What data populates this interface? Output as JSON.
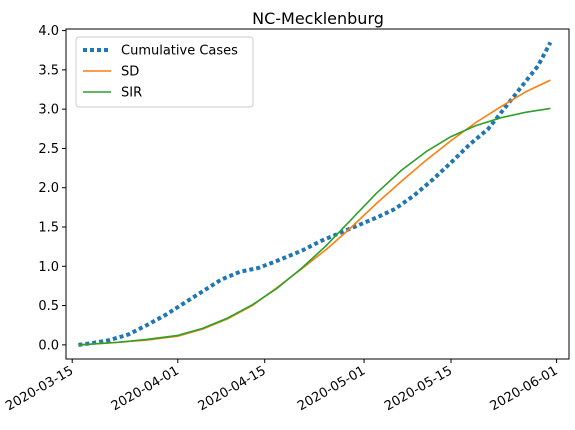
{
  "chart_data": {
    "type": "line",
    "title": "NC-Mecklenburg",
    "xlabel": "",
    "ylabel": "",
    "x_axis": {
      "type": "date",
      "range": [
        "2020-03-14",
        "2020-06-03"
      ],
      "ticks": [
        {
          "value": "2020-03-15",
          "label": "2020-03-15"
        },
        {
          "value": "2020-04-01",
          "label": "2020-04-01"
        },
        {
          "value": "2020-04-15",
          "label": "2020-04-15"
        },
        {
          "value": "2020-05-01",
          "label": "2020-05-01"
        },
        {
          "value": "2020-05-15",
          "label": "2020-05-15"
        },
        {
          "value": "2020-06-01",
          "label": "2020-06-01"
        }
      ],
      "tick_rotation": "30 degrees"
    },
    "y_axis": {
      "range": [
        -0.18,
        4.02
      ],
      "ticks": [
        {
          "value": 0.0,
          "label": "0.0"
        },
        {
          "value": 0.5,
          "label": "0.5"
        },
        {
          "value": 1.0,
          "label": "1.0"
        },
        {
          "value": 1.5,
          "label": "1.5"
        },
        {
          "value": 2.0,
          "label": "2.0"
        },
        {
          "value": 2.5,
          "label": "2.5"
        },
        {
          "value": 3.0,
          "label": "3.0"
        },
        {
          "value": 3.5,
          "label": "3.5"
        },
        {
          "value": 4.0,
          "label": "4.0"
        }
      ]
    },
    "grid": false,
    "legend": {
      "position": "upper-left"
    },
    "series": [
      {
        "name": "Cumulative Cases",
        "color": "#1f77b4",
        "style": "dotted",
        "points": [
          {
            "x": "2020-03-16",
            "y": 0.0
          },
          {
            "x": "2020-03-18",
            "y": 0.02
          },
          {
            "x": "2020-03-21",
            "y": 0.06
          },
          {
            "x": "2020-03-24",
            "y": 0.13
          },
          {
            "x": "2020-03-27",
            "y": 0.25
          },
          {
            "x": "2020-03-30",
            "y": 0.38
          },
          {
            "x": "2020-04-02",
            "y": 0.53
          },
          {
            "x": "2020-04-05",
            "y": 0.68
          },
          {
            "x": "2020-04-08",
            "y": 0.83
          },
          {
            "x": "2020-04-11",
            "y": 0.93
          },
          {
            "x": "2020-04-14",
            "y": 0.98
          },
          {
            "x": "2020-04-17",
            "y": 1.07
          },
          {
            "x": "2020-04-21",
            "y": 1.2
          },
          {
            "x": "2020-04-24",
            "y": 1.32
          },
          {
            "x": "2020-04-27",
            "y": 1.42
          },
          {
            "x": "2020-04-30",
            "y": 1.52
          },
          {
            "x": "2020-05-03",
            "y": 1.62
          },
          {
            "x": "2020-05-06",
            "y": 1.73
          },
          {
            "x": "2020-05-09",
            "y": 1.9
          },
          {
            "x": "2020-05-12",
            "y": 2.1
          },
          {
            "x": "2020-05-15",
            "y": 2.32
          },
          {
            "x": "2020-05-18",
            "y": 2.55
          },
          {
            "x": "2020-05-21",
            "y": 2.75
          },
          {
            "x": "2020-05-24",
            "y": 3.05
          },
          {
            "x": "2020-05-27",
            "y": 3.35
          },
          {
            "x": "2020-05-29",
            "y": 3.55
          },
          {
            "x": "2020-05-31",
            "y": 3.85
          }
        ]
      },
      {
        "name": "SD",
        "color": "#ff7f0e",
        "style": "solid",
        "points": [
          {
            "x": "2020-03-16",
            "y": 0.0
          },
          {
            "x": "2020-03-22",
            "y": 0.03
          },
          {
            "x": "2020-03-27",
            "y": 0.06
          },
          {
            "x": "2020-04-01",
            "y": 0.11
          },
          {
            "x": "2020-04-05",
            "y": 0.2
          },
          {
            "x": "2020-04-09",
            "y": 0.33
          },
          {
            "x": "2020-04-13",
            "y": 0.5
          },
          {
            "x": "2020-04-17",
            "y": 0.73
          },
          {
            "x": "2020-04-21",
            "y": 0.97
          },
          {
            "x": "2020-04-25",
            "y": 1.22
          },
          {
            "x": "2020-04-29",
            "y": 1.5
          },
          {
            "x": "2020-05-03",
            "y": 1.8
          },
          {
            "x": "2020-05-07",
            "y": 2.08
          },
          {
            "x": "2020-05-11",
            "y": 2.35
          },
          {
            "x": "2020-05-15",
            "y": 2.6
          },
          {
            "x": "2020-05-19",
            "y": 2.83
          },
          {
            "x": "2020-05-23",
            "y": 3.03
          },
          {
            "x": "2020-05-27",
            "y": 3.22
          },
          {
            "x": "2020-05-31",
            "y": 3.37
          }
        ]
      },
      {
        "name": "SIR",
        "color": "#2ca02c",
        "style": "solid",
        "points": [
          {
            "x": "2020-03-16",
            "y": 0.0
          },
          {
            "x": "2020-03-22",
            "y": 0.03
          },
          {
            "x": "2020-03-27",
            "y": 0.07
          },
          {
            "x": "2020-04-01",
            "y": 0.12
          },
          {
            "x": "2020-04-05",
            "y": 0.21
          },
          {
            "x": "2020-04-09",
            "y": 0.34
          },
          {
            "x": "2020-04-13",
            "y": 0.51
          },
          {
            "x": "2020-04-17",
            "y": 0.72
          },
          {
            "x": "2020-04-21",
            "y": 0.98
          },
          {
            "x": "2020-04-25",
            "y": 1.27
          },
          {
            "x": "2020-04-29",
            "y": 1.6
          },
          {
            "x": "2020-05-03",
            "y": 1.93
          },
          {
            "x": "2020-05-07",
            "y": 2.22
          },
          {
            "x": "2020-05-11",
            "y": 2.46
          },
          {
            "x": "2020-05-15",
            "y": 2.65
          },
          {
            "x": "2020-05-19",
            "y": 2.79
          },
          {
            "x": "2020-05-23",
            "y": 2.89
          },
          {
            "x": "2020-05-27",
            "y": 2.96
          },
          {
            "x": "2020-05-31",
            "y": 3.01
          }
        ]
      }
    ]
  }
}
